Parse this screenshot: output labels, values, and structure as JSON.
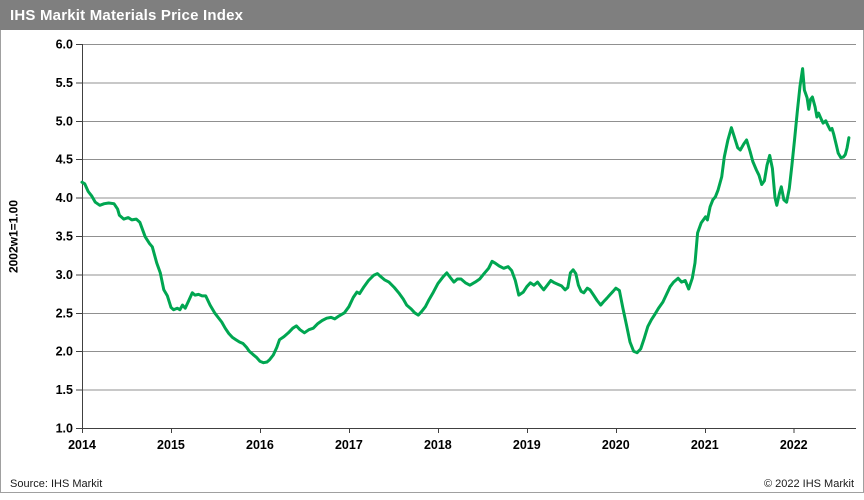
{
  "header": {
    "title": "IHS Markit Materials Price Index",
    "bg_color": "#7f7f7f",
    "text_color": "#ffffff"
  },
  "footer": {
    "source": "Source: IHS Markit",
    "copyright": "© 2022  IHS Markit"
  },
  "colors": {
    "line": "#00a651",
    "grid": "#909090",
    "axis": "#404040",
    "tick_text": "#000000"
  },
  "chart_data": {
    "type": "line",
    "title": "IHS Markit Materials Price Index",
    "ylabel": "2002w1=1.00",
    "xlabel": "",
    "ylim": [
      1.0,
      6.0
    ],
    "xlim": [
      2014.0,
      2022.7
    ],
    "grid": "horizontal",
    "legend": "none",
    "y_ticks": [
      1.0,
      1.5,
      2.0,
      2.5,
      3.0,
      3.5,
      4.0,
      4.5,
      5.0,
      5.5,
      6.0
    ],
    "x_ticks": [
      2014,
      2015,
      2016,
      2017,
      2018,
      2019,
      2020,
      2021,
      2022
    ],
    "series": [
      {
        "name": "IHS Markit Materials Price Index",
        "color": "#00a651",
        "x": [
          2014.0,
          2014.03,
          2014.07,
          2014.11,
          2014.15,
          2014.2,
          2014.25,
          2014.3,
          2014.36,
          2014.4,
          2014.42,
          2014.47,
          2014.52,
          2014.56,
          2014.61,
          2014.65,
          2014.71,
          2014.76,
          2014.79,
          2014.84,
          2014.88,
          2014.92,
          2014.96,
          2015.0,
          2015.03,
          2015.07,
          2015.1,
          2015.13,
          2015.16,
          2015.2,
          2015.24,
          2015.27,
          2015.31,
          2015.35,
          2015.39,
          2015.44,
          2015.49,
          2015.53,
          2015.57,
          2015.61,
          2015.65,
          2015.69,
          2015.73,
          2015.77,
          2015.81,
          2015.85,
          2015.88,
          2015.92,
          2015.96,
          2016.0,
          2016.04,
          2016.08,
          2016.11,
          2016.15,
          2016.19,
          2016.22,
          2016.27,
          2016.32,
          2016.37,
          2016.41,
          2016.45,
          2016.5,
          2016.55,
          2016.6,
          2016.65,
          2016.7,
          2016.75,
          2016.8,
          2016.84,
          2016.89,
          2016.95,
          2017.0,
          2017.05,
          2017.09,
          2017.12,
          2017.17,
          2017.22,
          2017.28,
          2017.32,
          2017.36,
          2017.4,
          2017.45,
          2017.51,
          2017.56,
          2017.61,
          2017.65,
          2017.7,
          2017.74,
          2017.78,
          2017.82,
          2017.86,
          2017.9,
          2017.95,
          2018.0,
          2018.06,
          2018.1,
          2018.14,
          2018.18,
          2018.22,
          2018.26,
          2018.31,
          2018.36,
          2018.42,
          2018.47,
          2018.52,
          2018.57,
          2018.61,
          2018.64,
          2018.69,
          2018.74,
          2018.79,
          2018.83,
          2018.87,
          2018.91,
          2018.96,
          2019.0,
          2019.04,
          2019.08,
          2019.12,
          2019.16,
          2019.19,
          2019.23,
          2019.27,
          2019.31,
          2019.35,
          2019.39,
          2019.43,
          2019.46,
          2019.49,
          2019.52,
          2019.55,
          2019.58,
          2019.61,
          2019.64,
          2019.68,
          2019.71,
          2019.75,
          2019.79,
          2019.83,
          2019.86,
          2019.9,
          2019.93,
          2019.97,
          2020.0,
          2020.04,
          2020.08,
          2020.12,
          2020.16,
          2020.2,
          2020.24,
          2020.28,
          2020.32,
          2020.36,
          2020.4,
          2020.44,
          2020.48,
          2020.53,
          2020.57,
          2020.61,
          2020.65,
          2020.7,
          2020.74,
          2020.78,
          2020.82,
          2020.86,
          2020.89,
          2020.92,
          2020.96,
          2020.99,
          2021.01,
          2021.03,
          2021.06,
          2021.09,
          2021.12,
          2021.15,
          2021.19,
          2021.22,
          2021.26,
          2021.3,
          2021.33,
          2021.37,
          2021.4,
          2021.44,
          2021.47,
          2021.51,
          2021.54,
          2021.58,
          2021.61,
          2021.64,
          2021.67,
          2021.7,
          2021.73,
          2021.76,
          2021.79,
          2021.81,
          2021.84,
          2021.86,
          2021.89,
          2021.92,
          2021.95,
          2021.98,
          2022.01,
          2022.04,
          2022.07,
          2022.1,
          2022.12,
          2022.15,
          2022.17,
          2022.19,
          2022.21,
          2022.24,
          2022.26,
          2022.28,
          2022.31,
          2022.33,
          2022.36,
          2022.38,
          2022.41,
          2022.43,
          2022.45,
          2022.48,
          2022.5,
          2022.53,
          2022.56,
          2022.58,
          2022.6,
          2022.62
        ],
        "y": [
          4.2,
          4.18,
          4.08,
          4.02,
          3.94,
          3.9,
          3.92,
          3.93,
          3.92,
          3.85,
          3.77,
          3.72,
          3.74,
          3.71,
          3.72,
          3.68,
          3.49,
          3.4,
          3.36,
          3.15,
          3.02,
          2.8,
          2.72,
          2.57,
          2.54,
          2.56,
          2.54,
          2.6,
          2.56,
          2.66,
          2.76,
          2.73,
          2.74,
          2.72,
          2.72,
          2.6,
          2.5,
          2.44,
          2.38,
          2.3,
          2.23,
          2.18,
          2.15,
          2.12,
          2.1,
          2.05,
          2.0,
          1.96,
          1.92,
          1.87,
          1.85,
          1.86,
          1.89,
          1.95,
          2.05,
          2.15,
          2.19,
          2.24,
          2.3,
          2.33,
          2.28,
          2.24,
          2.28,
          2.3,
          2.36,
          2.4,
          2.43,
          2.44,
          2.42,
          2.46,
          2.5,
          2.58,
          2.7,
          2.77,
          2.75,
          2.84,
          2.92,
          2.99,
          3.01,
          2.97,
          2.93,
          2.9,
          2.83,
          2.76,
          2.68,
          2.6,
          2.55,
          2.5,
          2.47,
          2.52,
          2.58,
          2.67,
          2.77,
          2.88,
          2.97,
          3.02,
          2.96,
          2.9,
          2.94,
          2.94,
          2.89,
          2.86,
          2.9,
          2.94,
          3.01,
          3.08,
          3.17,
          3.15,
          3.11,
          3.08,
          3.1,
          3.05,
          2.92,
          2.73,
          2.77,
          2.84,
          2.89,
          2.86,
          2.9,
          2.84,
          2.8,
          2.86,
          2.92,
          2.89,
          2.87,
          2.85,
          2.8,
          2.83,
          3.02,
          3.06,
          3.01,
          2.86,
          2.78,
          2.76,
          2.82,
          2.8,
          2.73,
          2.66,
          2.6,
          2.64,
          2.69,
          2.73,
          2.78,
          2.82,
          2.79,
          2.56,
          2.34,
          2.12,
          2.0,
          1.98,
          2.03,
          2.17,
          2.32,
          2.41,
          2.48,
          2.56,
          2.64,
          2.74,
          2.84,
          2.9,
          2.95,
          2.9,
          2.92,
          2.81,
          2.95,
          3.15,
          3.54,
          3.67,
          3.72,
          3.75,
          3.71,
          3.88,
          3.97,
          4.01,
          4.1,
          4.27,
          4.53,
          4.75,
          4.91,
          4.8,
          4.65,
          4.62,
          4.7,
          4.75,
          4.6,
          4.47,
          4.36,
          4.29,
          4.17,
          4.22,
          4.42,
          4.55,
          4.38,
          4.0,
          3.9,
          4.06,
          4.14,
          3.97,
          3.94,
          4.12,
          4.42,
          4.76,
          5.12,
          5.45,
          5.68,
          5.4,
          5.3,
          5.15,
          5.28,
          5.31,
          5.18,
          5.05,
          5.1,
          5.02,
          4.97,
          5.0,
          4.95,
          4.88,
          4.9,
          4.82,
          4.68,
          4.58,
          4.52,
          4.53,
          4.56,
          4.65,
          4.78
        ]
      }
    ]
  }
}
